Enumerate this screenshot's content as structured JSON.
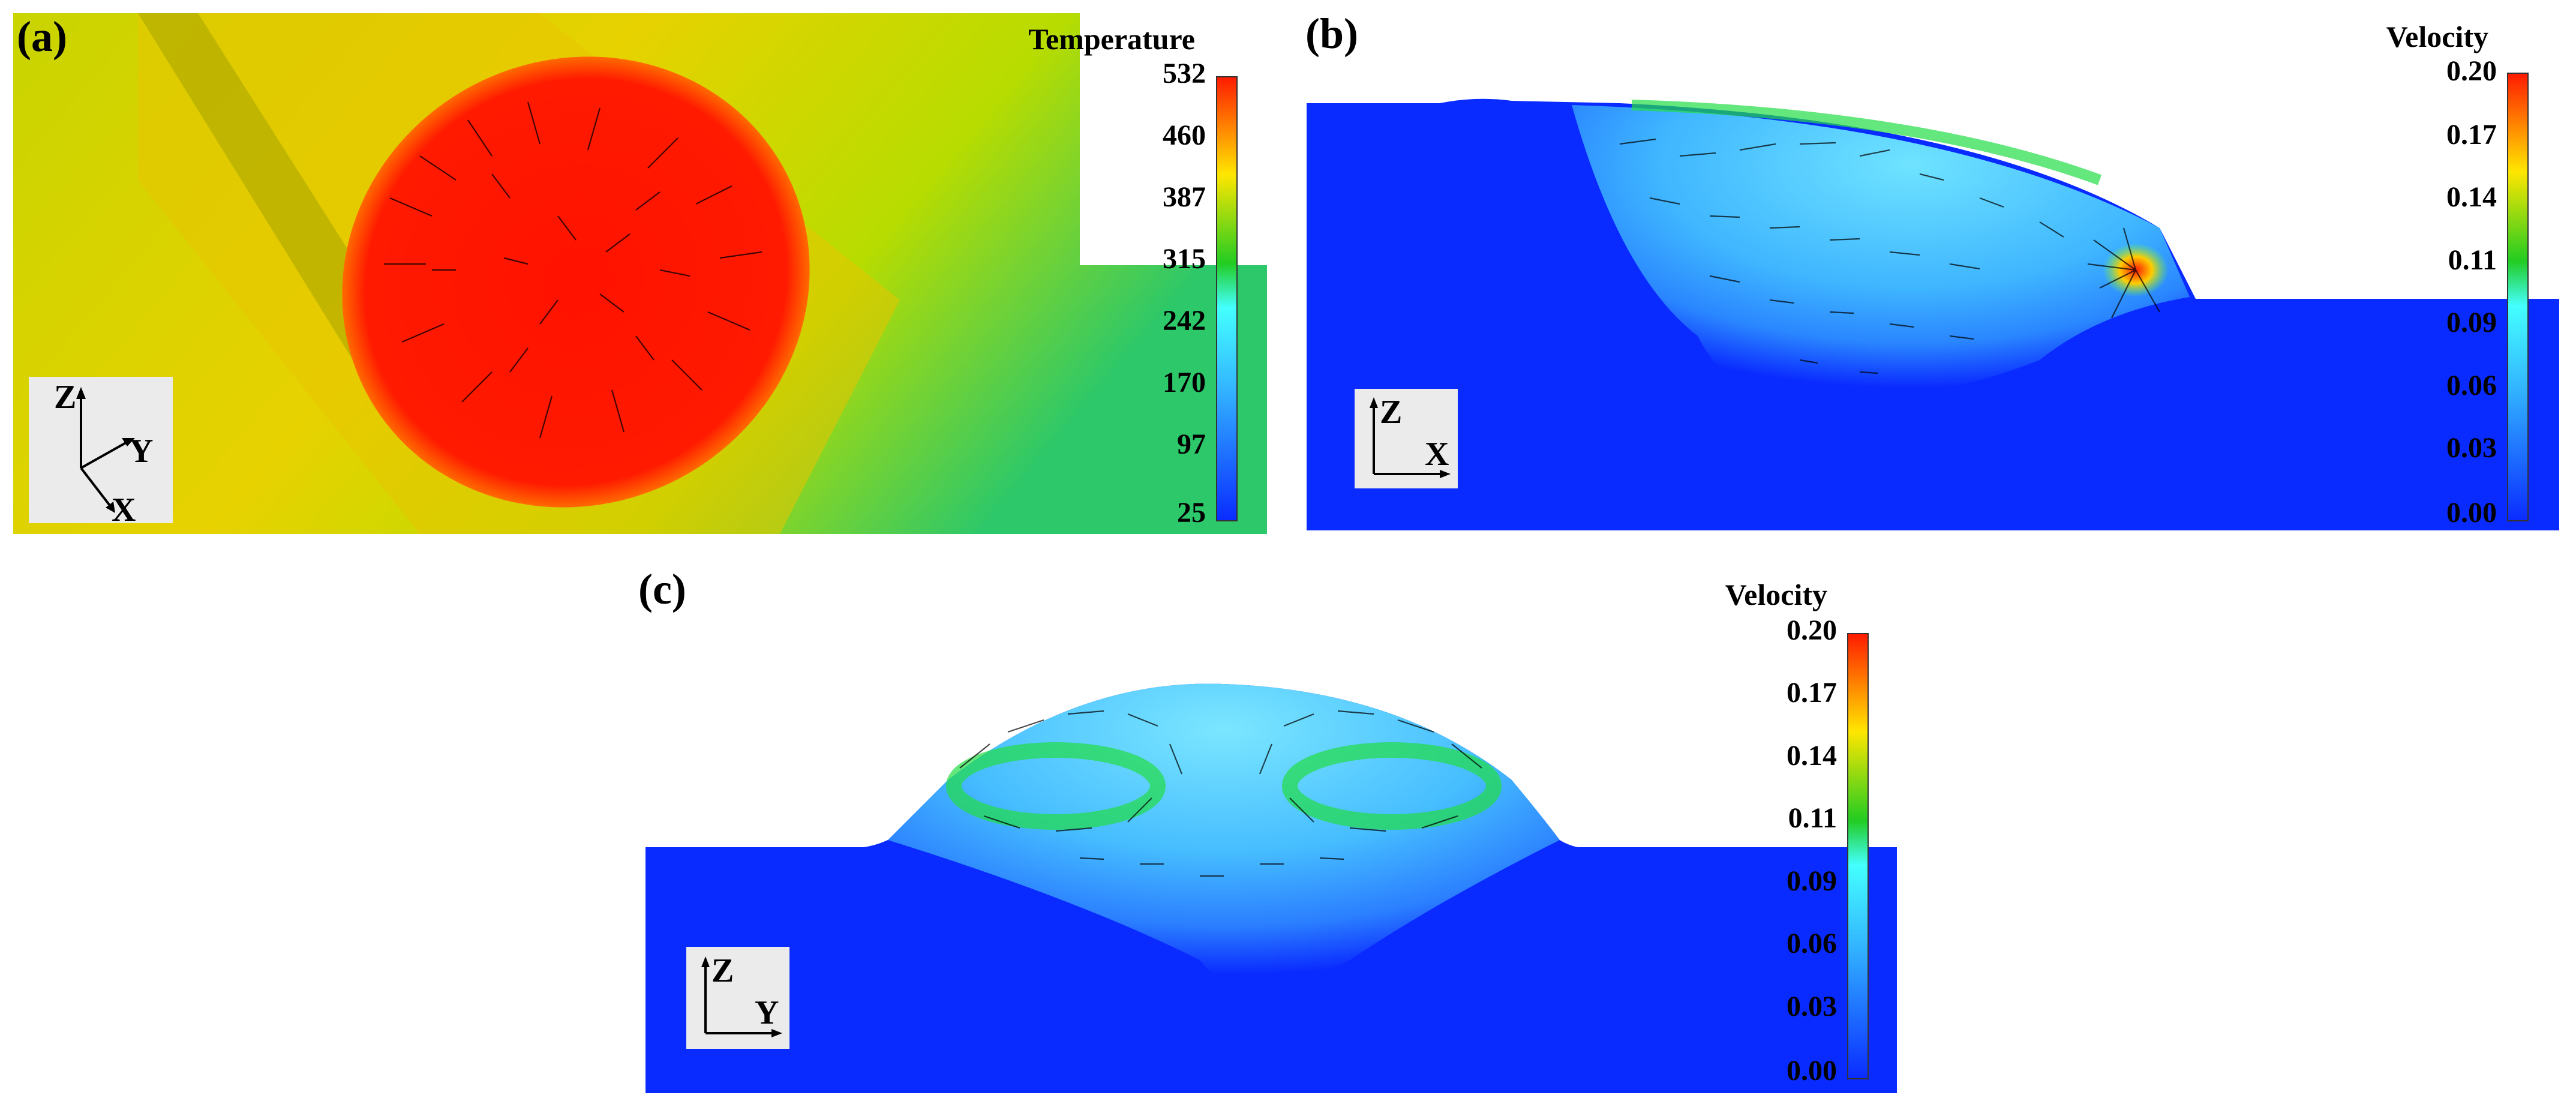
{
  "figure": {
    "panels": [
      {
        "id": "a",
        "label": "(a)",
        "legend_title": "Temperature",
        "legend_ticks": [
          "532",
          "460",
          "387",
          "315",
          "242",
          "170",
          "97",
          "25"
        ],
        "axes": [
          "Z",
          "Y",
          "X"
        ]
      },
      {
        "id": "b",
        "label": "(b)",
        "legend_title": "Velocity",
        "legend_ticks": [
          "0.20",
          "0.17",
          "0.14",
          "0.11",
          "0.09",
          "0.06",
          "0.03",
          "0.00"
        ],
        "axes": [
          "Z",
          "X"
        ]
      },
      {
        "id": "c",
        "label": "(c)",
        "legend_title": "Velocity",
        "legend_ticks": [
          "0.20",
          "0.17",
          "0.14",
          "0.11",
          "0.09",
          "0.06",
          "0.03",
          "0.00"
        ],
        "axes": [
          "Z",
          "Y"
        ]
      }
    ],
    "colors": {
      "jet_red": "#ff1a00",
      "jet_yellow": "#ffe600",
      "jet_green": "#22cc22",
      "jet_cyan": "#55ddff",
      "jet_blue": "#0a2bff",
      "axis_box": "#ebebeb"
    }
  }
}
